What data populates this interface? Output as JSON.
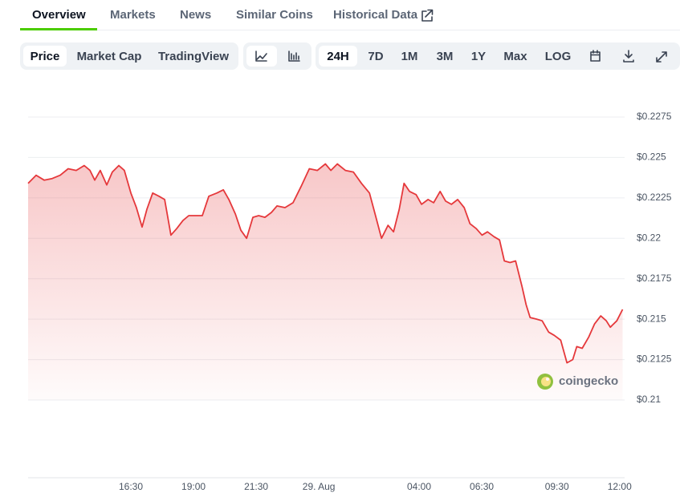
{
  "tabs": [
    "Overview",
    "Markets",
    "News",
    "Similar Coins",
    "Historical Data"
  ],
  "views": [
    "Price",
    "Market Cap",
    "TradingView"
  ],
  "ranges": [
    "24H",
    "7D",
    "1M",
    "3M",
    "1Y",
    "Max",
    "LOG"
  ],
  "chart_data": {
    "type": "line",
    "color": "#e5383b",
    "grid": true,
    "watermark": "coingecko",
    "x": [
      -11.6,
      -11.28,
      -10.96,
      -10.64,
      -10.32,
      -10.0,
      -9.68,
      -9.36,
      -9.13,
      -8.94,
      -8.72,
      -8.46,
      -8.24,
      -7.98,
      -7.76,
      -7.5,
      -7.28,
      -7.05,
      -6.86,
      -6.63,
      -6.38,
      -6.15,
      -5.9,
      -5.67,
      -5.42,
      -5.19,
      -4.87,
      -4.65,
      -4.39,
      -4.07,
      -3.81,
      -3.59,
      -3.33,
      -3.11,
      -2.88,
      -2.63,
      -2.4,
      -2.15,
      -1.89,
      -1.67,
      -1.35,
      -1.03,
      -0.71,
      -0.38,
      -0.06,
      0.26,
      0.48,
      0.74,
      1.06,
      1.38,
      1.7,
      2.02,
      2.28,
      2.5,
      2.76,
      2.98,
      3.21,
      3.4,
      3.62,
      3.88,
      4.1,
      4.36,
      4.58,
      4.84,
      5.06,
      5.29,
      5.54,
      5.8,
      6.03,
      6.28,
      6.51,
      6.73,
      6.99,
      7.21,
      7.4,
      7.63,
      7.85,
      8.11,
      8.27,
      8.43,
      8.69,
      8.91,
      9.17,
      9.39,
      9.65,
      9.9,
      10.13,
      10.29,
      10.51,
      10.77,
      11.0,
      11.25,
      11.47,
      11.63,
      11.89,
      12.12
    ],
    "values": [
      0.2234,
      0.2239,
      0.2236,
      0.2237,
      0.2239,
      0.2243,
      0.2242,
      0.2245,
      0.2242,
      0.2236,
      0.2242,
      0.2233,
      0.2241,
      0.2245,
      0.2242,
      0.2228,
      0.2219,
      0.2207,
      0.2218,
      0.2228,
      0.2226,
      0.2224,
      0.2202,
      0.2206,
      0.2211,
      0.2214,
      0.2214,
      0.2214,
      0.2226,
      0.2228,
      0.223,
      0.2224,
      0.2215,
      0.2205,
      0.22,
      0.2213,
      0.2214,
      0.2213,
      0.2216,
      0.222,
      0.2219,
      0.2222,
      0.2232,
      0.2243,
      0.2242,
      0.2246,
      0.2242,
      0.2246,
      0.2242,
      0.2241,
      0.2234,
      0.2228,
      0.2213,
      0.22,
      0.2208,
      0.2204,
      0.2218,
      0.2234,
      0.2229,
      0.2227,
      0.2221,
      0.2224,
      0.2222,
      0.2229,
      0.2223,
      0.2221,
      0.2224,
      0.2219,
      0.2209,
      0.2206,
      0.2202,
      0.2204,
      0.2201,
      0.2199,
      0.2186,
      0.2185,
      0.2186,
      0.217,
      0.2159,
      0.2151,
      0.215,
      0.2149,
      0.2142,
      0.214,
      0.2137,
      0.2123,
      0.2125,
      0.2133,
      0.2132,
      0.2139,
      0.2147,
      0.2152,
      0.2149,
      0.2145,
      0.2149,
      0.2156
    ],
    "xlim": [
      -11.6,
      12.2
    ],
    "xticks": [
      {
        "value": -7.5,
        "label": "16:30"
      },
      {
        "value": -5,
        "label": "19:00"
      },
      {
        "value": -2.5,
        "label": "21:30"
      },
      {
        "value": 0,
        "label": "29. Aug"
      },
      {
        "value": 4,
        "label": "04:00"
      },
      {
        "value": 6.5,
        "label": "06:30"
      },
      {
        "value": 9.5,
        "label": "09:30"
      },
      {
        "value": 12,
        "label": "12:00"
      }
    ],
    "ylim": [
      0.21,
      0.2275
    ],
    "yticks": [
      {
        "value": 0.21,
        "label": "$0.21"
      },
      {
        "value": 0.2125,
        "label": "$0.2125"
      },
      {
        "value": 0.215,
        "label": "$0.215"
      },
      {
        "value": 0.2175,
        "label": "$0.2175"
      },
      {
        "value": 0.22,
        "label": "$0.22"
      },
      {
        "value": 0.2225,
        "label": "$0.2225"
      },
      {
        "value": 0.225,
        "label": "$0.225"
      },
      {
        "value": 0.2275,
        "label": "$0.2275"
      }
    ]
  }
}
